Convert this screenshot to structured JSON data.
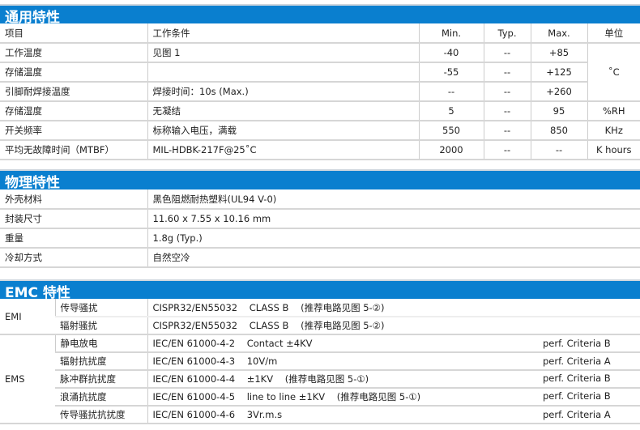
{
  "general": {
    "title": "通用特性",
    "headers": [
      "项目",
      "工作条件",
      "Min.",
      "Typ.",
      "Max.",
      "单位"
    ],
    "rows": [
      {
        "item": "工作温度",
        "cond": "见图 1",
        "min": "-40",
        "typ": "--",
        "max": "+85"
      },
      {
        "item": "存储温度",
        "cond": "",
        "min": "-55",
        "typ": "--",
        "max": "+125"
      },
      {
        "item": "引脚耐焊接温度",
        "cond": "焊接时间：10s (Max.)",
        "min": "--",
        "typ": "--",
        "max": "+260"
      },
      {
        "item": "存储湿度",
        "cond": "无凝结",
        "min": "5",
        "typ": "--",
        "max": "95",
        "unit": "%RH"
      },
      {
        "item": "开关频率",
        "cond": "标称输入电压，满载",
        "min": "550",
        "typ": "--",
        "max": "850",
        "unit": "KHz"
      },
      {
        "item": "平均无故障时间（MTBF）",
        "cond": "MIL-HDBK-217F@25˚C",
        "min": "2000",
        "typ": "--",
        "max": "--",
        "unit": "K hours"
      }
    ],
    "temp_unit": "˚C"
  },
  "physical": {
    "title": "物理特性",
    "rows": [
      {
        "item": "外壳材料",
        "value": "黑色阻燃耐热塑料(UL94 V-0)"
      },
      {
        "item": "封装尺寸",
        "value": "11.60 x 7.55 x 10.16 mm"
      },
      {
        "item": "重量",
        "value": "1.8g (Typ.)"
      },
      {
        "item": "冷却方式",
        "value": "自然空冷"
      }
    ]
  },
  "emc": {
    "title": "EMC 特性",
    "emi": {
      "label": "EMI",
      "rows": [
        {
          "item": "传导骚扰",
          "std": "CISPR32/EN55032",
          "spec": "CLASS B",
          "note": "(推荐电路见图 5-②)"
        },
        {
          "item": "辐射骚扰",
          "std": "CISPR32/EN55032",
          "spec": "CLASS B",
          "note": "(推荐电路见图 5-②)"
        }
      ]
    },
    "ems": {
      "label": "EMS",
      "rows": [
        {
          "item": "静电放电",
          "std": "IEC/EN 61000-4-2",
          "spec": "Contact ±4KV",
          "note": "",
          "crit": "perf. Criteria B"
        },
        {
          "item": "辐射抗扰度",
          "std": "IEC/EN 61000-4-3",
          "spec": "10V/m",
          "note": "",
          "crit": "perf. Criteria A"
        },
        {
          "item": "脉冲群抗扰度",
          "std": "IEC/EN 61000-4-4",
          "spec": "±1KV",
          "note": "(推荐电路见图 5-①)",
          "crit": "perf. Criteria B"
        },
        {
          "item": "浪涌抗扰度",
          "std": "IEC/EN 61000-4-5",
          "spec": "line to line ±1KV",
          "note": "(推荐电路见图 5-①)",
          "crit": "perf. Criteria B"
        },
        {
          "item": "传导骚扰抗扰度",
          "std": "IEC/EN 61000-4-6",
          "spec": "3Vr.m.s",
          "note": "",
          "crit": "perf. Criteria A"
        }
      ]
    }
  },
  "colors": {
    "section_header": "#0a7fcf"
  }
}
